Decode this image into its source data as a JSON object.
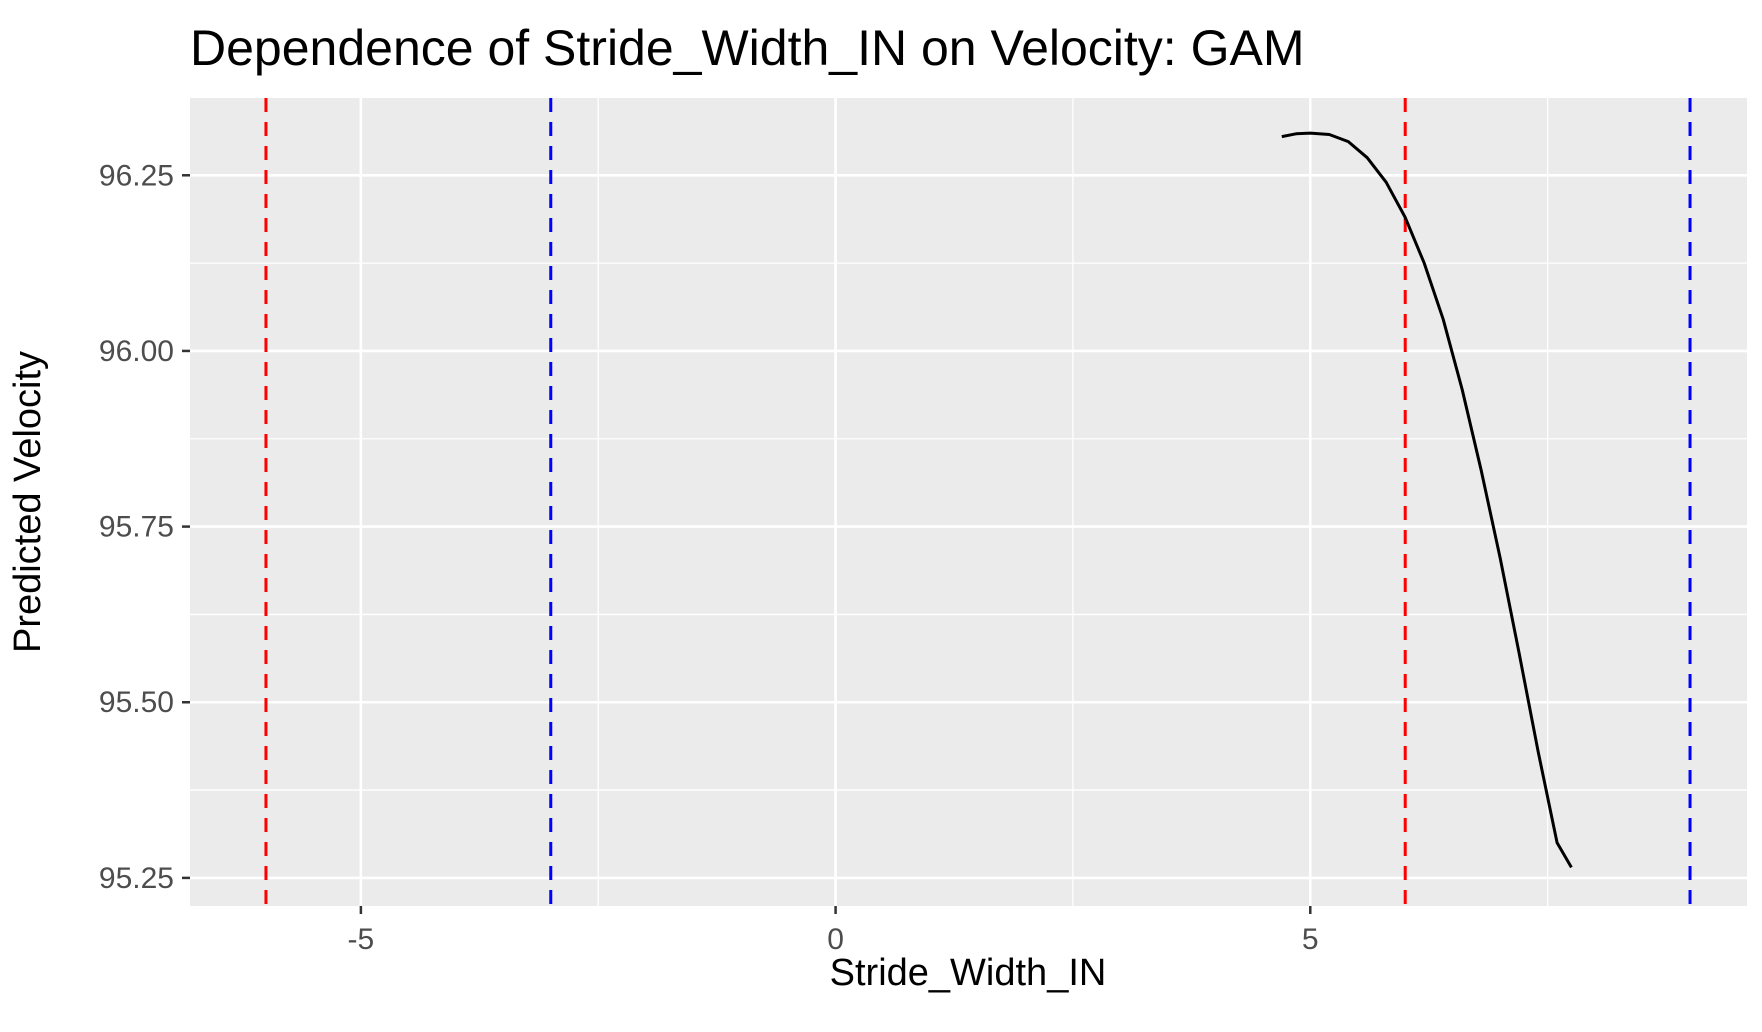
{
  "chart_data": {
    "type": "line",
    "title": "Dependence of Stride_Width_IN on Velocity: GAM",
    "xlabel": "Stride_Width_IN",
    "ylabel": "Predicted Velocity",
    "xlim": [
      -6.8,
      9.6
    ],
    "ylim": [
      95.21,
      96.36
    ],
    "x_ticks": [
      -5,
      0,
      5
    ],
    "x_tick_labels": [
      "-5",
      "0",
      "5"
    ],
    "y_ticks": [
      95.25,
      95.5,
      95.75,
      96.0,
      96.25
    ],
    "y_tick_labels": [
      "95.25",
      "95.50",
      "95.75",
      "96.00",
      "96.25"
    ],
    "x_minor_grid": [
      -2.5,
      2.5,
      7.5
    ],
    "y_minor_grid": [
      95.375,
      95.625,
      95.875,
      96.125
    ],
    "grid": true,
    "panel_background": "#EBEBEB",
    "grid_color": "#FFFFFF",
    "series": [
      {
        "color": "#000000",
        "x": [
          4.7,
          4.85,
          5.0,
          5.2,
          5.4,
          5.6,
          5.8,
          6.0,
          6.2,
          6.4,
          6.6,
          6.8,
          7.0,
          7.2,
          7.4,
          7.6,
          7.75
        ],
        "y": [
          96.305,
          96.309,
          96.31,
          96.308,
          96.298,
          96.275,
          96.24,
          96.19,
          96.125,
          96.045,
          95.945,
          95.83,
          95.705,
          95.57,
          95.43,
          95.3,
          95.265
        ]
      }
    ],
    "vlines": [
      {
        "x": -6.0,
        "color": "#FF0000",
        "style": "dashed"
      },
      {
        "x": -3.0,
        "color": "#0000FF",
        "style": "dashed"
      },
      {
        "x": 6.0,
        "color": "#FF0000",
        "style": "dashed"
      },
      {
        "x": 9.0,
        "color": "#0000FF",
        "style": "dashed"
      }
    ]
  }
}
